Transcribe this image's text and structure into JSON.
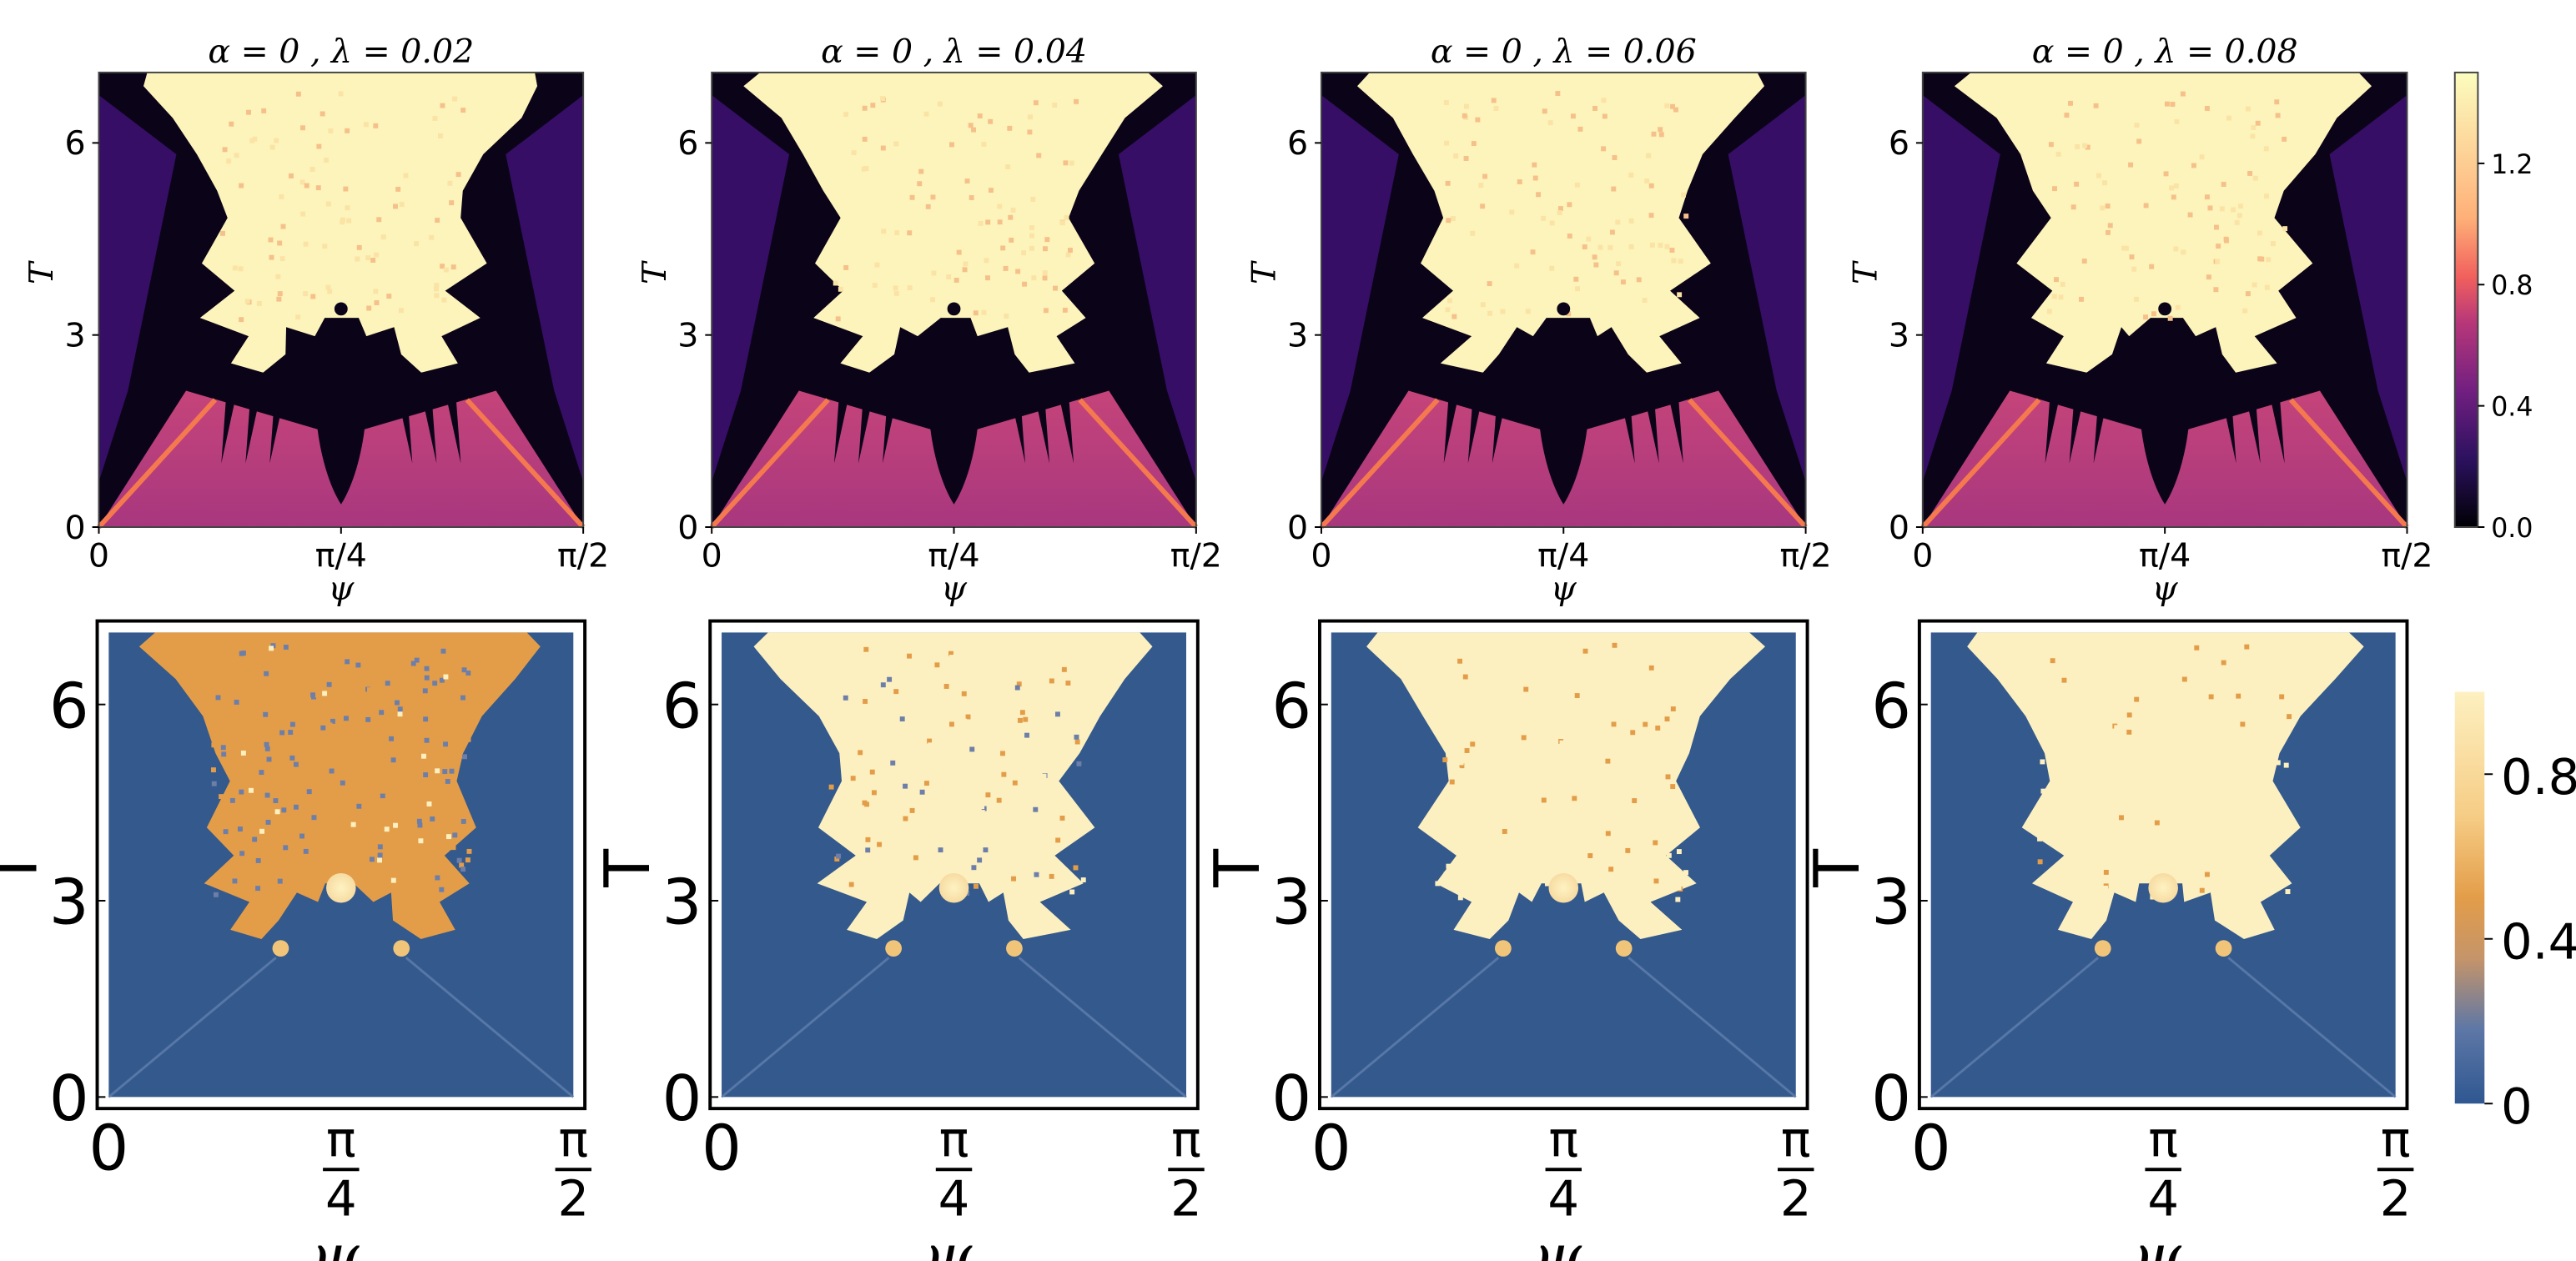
{
  "chart_data": [
    {
      "type": "heatmap",
      "title": "α = 0  ,  λ = 0.02",
      "xlabel": "ψ",
      "ylabel": "T",
      "xticks": [
        "0",
        "π/4",
        "π/2"
      ],
      "yticks": [
        "0",
        "3",
        "6"
      ],
      "xlim": [
        0,
        1.5708
      ],
      "ylim": [
        0,
        7.1
      ],
      "colormap": "magma",
      "colorbar": {
        "ticks": [
          "0.0",
          "0.4",
          "0.8",
          "1.2"
        ],
        "range": [
          0,
          1.5
        ]
      }
    },
    {
      "type": "heatmap",
      "title": "α = 0  ,  λ = 0.04",
      "xlabel": "ψ",
      "ylabel": "T",
      "xticks": [
        "0",
        "π/4",
        "π/2"
      ],
      "yticks": [
        "0",
        "3",
        "6"
      ],
      "xlim": [
        0,
        1.5708
      ],
      "ylim": [
        0,
        7.1
      ],
      "colormap": "magma"
    },
    {
      "type": "heatmap",
      "title": "α = 0  ,  λ = 0.06",
      "xlabel": "ψ",
      "ylabel": "T",
      "xticks": [
        "0",
        "π/4",
        "π/2"
      ],
      "yticks": [
        "0",
        "3",
        "6"
      ],
      "xlim": [
        0,
        1.5708
      ],
      "ylim": [
        0,
        7.1
      ],
      "colormap": "magma"
    },
    {
      "type": "heatmap",
      "title": "α = 0  ,  λ = 0.08",
      "xlabel": "ψ",
      "ylabel": "T",
      "xticks": [
        "0",
        "π/4",
        "π/2"
      ],
      "yticks": [
        "0",
        "3",
        "6"
      ],
      "xlim": [
        0,
        1.5708
      ],
      "ylim": [
        0,
        7.1
      ],
      "colormap": "magma"
    },
    {
      "type": "heatmap",
      "title": "",
      "xlabel": "ψ",
      "ylabel": "T",
      "xticks": [
        "0",
        "π/4",
        "π/2"
      ],
      "yticks": [
        "0",
        "3",
        "6"
      ],
      "xlim": [
        0,
        1.5708
      ],
      "ylim": [
        0,
        7.1
      ],
      "colormap": "blue-orange-cream"
    },
    {
      "type": "heatmap",
      "title": "",
      "xlabel": "ψ",
      "ylabel": "T",
      "xticks": [
        "0",
        "π/4",
        "π/2"
      ],
      "yticks": [
        "0",
        "3",
        "6"
      ],
      "xlim": [
        0,
        1.5708
      ],
      "ylim": [
        0,
        7.1
      ],
      "colormap": "blue-orange-cream"
    },
    {
      "type": "heatmap",
      "title": "",
      "xlabel": "ψ",
      "ylabel": "T",
      "xticks": [
        "0",
        "π/4",
        "π/2"
      ],
      "yticks": [
        "0",
        "3",
        "6"
      ],
      "xlim": [
        0,
        1.5708
      ],
      "ylim": [
        0,
        7.1
      ],
      "colormap": "blue-orange-cream"
    },
    {
      "type": "heatmap",
      "title": "",
      "xlabel": "ψ",
      "ylabel": "T",
      "xticks": [
        "0",
        "π/4",
        "π/2"
      ],
      "yticks": [
        "0",
        "3",
        "6"
      ],
      "xlim": [
        0,
        1.5708
      ],
      "ylim": [
        0,
        7.1
      ],
      "colormap": "blue-orange-cream",
      "colorbar": {
        "ticks": [
          "0",
          "0.4",
          "0.8"
        ],
        "range": [
          0,
          1
        ]
      }
    }
  ],
  "colors": {
    "magma_dark": "#0b0419",
    "magma_purple": "#3b0f6f",
    "magma_magenta": "#b33d7c",
    "magma_orange": "#f4794f",
    "magma_cream": "#fcf4bb",
    "blue_low": "#34598c",
    "orange_mid": "#e39d49",
    "cream_high": "#fdf0c0"
  }
}
